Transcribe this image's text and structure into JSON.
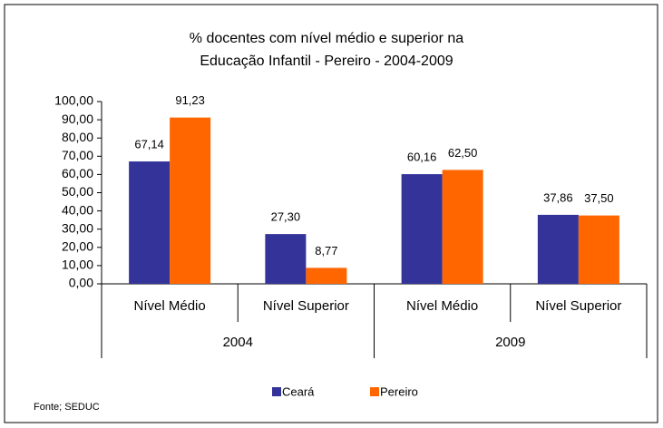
{
  "chart_data": {
    "type": "bar",
    "title": [
      "% docentes com nível médio e superior na",
      "Educação Infantil - Pereiro - 2004-2009"
    ],
    "categories": [
      "Nível Médio",
      "Nível Superior",
      "Nível Médio",
      "Nível Superior"
    ],
    "group_labels": [
      "2004",
      "2009"
    ],
    "series": [
      {
        "name": "Ceará",
        "color": "#333399",
        "values": [
          67.14,
          27.3,
          60.16,
          37.86
        ],
        "value_labels": [
          "67,14",
          "27,30",
          "60,16",
          "37,86"
        ]
      },
      {
        "name": "Pereiro",
        "color": "#ff6600",
        "values": [
          91.23,
          8.77,
          62.5,
          37.5
        ],
        "value_labels": [
          "91,23",
          "8,77",
          "62,50",
          "37,50"
        ]
      }
    ],
    "ylim": [
      0,
      100
    ],
    "yticks": [
      {
        "value": 0,
        "label": "0,00"
      },
      {
        "value": 10,
        "label": "10,00"
      },
      {
        "value": 20,
        "label": "20,00"
      },
      {
        "value": 30,
        "label": "30,00"
      },
      {
        "value": 40,
        "label": "40,00"
      },
      {
        "value": 50,
        "label": "50,00"
      },
      {
        "value": 60,
        "label": "60,00"
      },
      {
        "value": 70,
        "label": "70,00"
      },
      {
        "value": 80,
        "label": "80,00"
      },
      {
        "value": 90,
        "label": "90,00"
      },
      {
        "value": 100,
        "label": "100,00"
      }
    ],
    "legend": "bottom",
    "source": "Fonte; SEDUC"
  }
}
